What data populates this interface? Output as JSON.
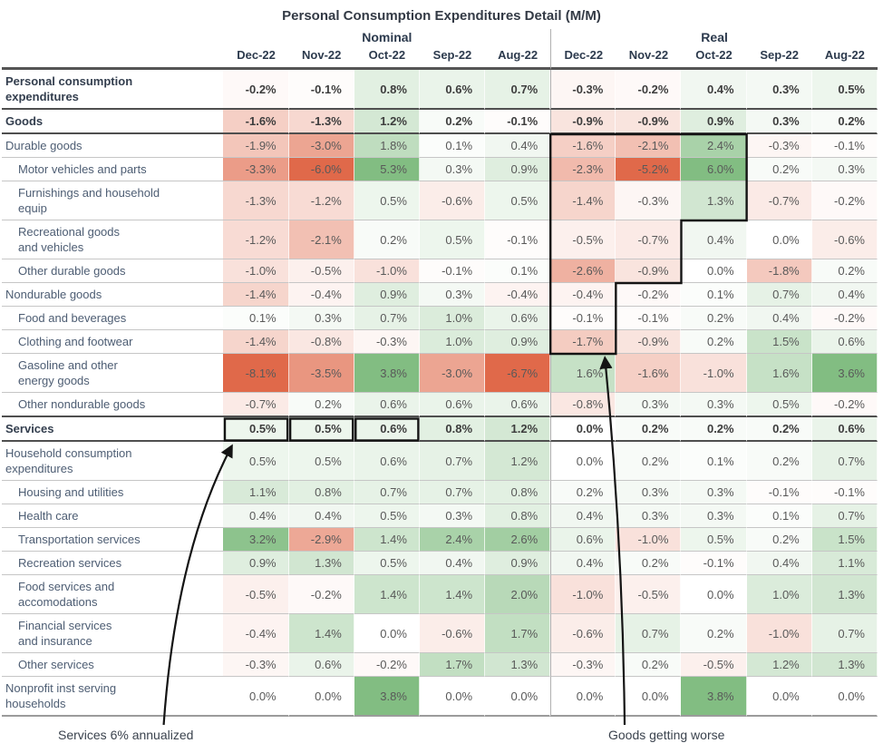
{
  "title": "Personal Consumption Expenditures Detail (M/M)",
  "chart_data": {
    "type": "heatmap",
    "title": "Personal Consumption Expenditures Detail (M/M)",
    "column_groups": [
      "Nominal",
      "Real"
    ],
    "columns": [
      "Dec-22",
      "Nov-22",
      "Oct-22",
      "Sep-22",
      "Aug-22"
    ],
    "value_unit": "%",
    "color_scale": {
      "negative_full": "#e0694a",
      "zero": "#ffffff",
      "positive_full": "#82bd82"
    },
    "rows": [
      {
        "lines": [
          "Personal consumption",
          "expenditures"
        ],
        "bold": true,
        "indent": 0,
        "nominal": [
          -0.2,
          -0.1,
          0.8,
          0.6,
          0.7
        ],
        "real": [
          -0.3,
          -0.2,
          0.4,
          0.3,
          0.5
        ]
      },
      {
        "lines": [
          "Goods"
        ],
        "bold": true,
        "indent": 0,
        "nominal": [
          -1.6,
          -1.3,
          1.2,
          0.2,
          -0.1
        ],
        "real": [
          -0.9,
          -0.9,
          0.9,
          0.3,
          0.2
        ]
      },
      {
        "lines": [
          "Durable goods"
        ],
        "bold": false,
        "indent": 0,
        "nominal": [
          -1.9,
          -3.0,
          1.8,
          0.1,
          0.4
        ],
        "real": [
          -1.6,
          -2.1,
          2.4,
          -0.3,
          -0.1
        ]
      },
      {
        "lines": [
          "Motor vehicles and parts"
        ],
        "bold": false,
        "indent": 1,
        "nominal": [
          -3.3,
          -6.0,
          5.3,
          0.3,
          0.9
        ],
        "real": [
          -2.3,
          -5.2,
          6.0,
          0.2,
          0.3
        ]
      },
      {
        "lines": [
          "Furnishings and household",
          "equip"
        ],
        "bold": false,
        "indent": 1,
        "nominal": [
          -1.3,
          -1.2,
          0.5,
          -0.6,
          0.5
        ],
        "real": [
          -1.4,
          -0.3,
          1.3,
          -0.7,
          -0.2
        ]
      },
      {
        "lines": [
          "Recreational goods",
          "and vehicles"
        ],
        "bold": false,
        "indent": 1,
        "nominal": [
          -1.2,
          -2.1,
          0.2,
          0.5,
          -0.1
        ],
        "real": [
          -0.5,
          -0.7,
          0.4,
          0.0,
          -0.6
        ]
      },
      {
        "lines": [
          "Other durable goods"
        ],
        "bold": false,
        "indent": 1,
        "nominal": [
          -1.0,
          -0.5,
          -1.0,
          -0.1,
          0.1
        ],
        "real": [
          -2.6,
          -0.9,
          0.0,
          -1.8,
          0.2
        ]
      },
      {
        "lines": [
          "Nondurable goods"
        ],
        "bold": false,
        "indent": 0,
        "nominal": [
          -1.4,
          -0.4,
          0.9,
          0.3,
          -0.4
        ],
        "real": [
          -0.4,
          -0.2,
          0.1,
          0.7,
          0.4
        ]
      },
      {
        "lines": [
          "Food and beverages"
        ],
        "bold": false,
        "indent": 1,
        "nominal": [
          0.1,
          0.3,
          0.7,
          1.0,
          0.6
        ],
        "real": [
          -0.1,
          -0.1,
          0.2,
          0.4,
          -0.2
        ]
      },
      {
        "lines": [
          "Clothing and footwear"
        ],
        "bold": false,
        "indent": 1,
        "nominal": [
          -1.4,
          -0.8,
          -0.3,
          1.0,
          0.9
        ],
        "real": [
          -1.7,
          -0.9,
          0.2,
          1.5,
          0.6
        ]
      },
      {
        "lines": [
          "Gasoline and other",
          "energy goods"
        ],
        "bold": false,
        "indent": 1,
        "nominal": [
          -8.1,
          -3.5,
          3.8,
          -3.0,
          -6.7
        ],
        "real": [
          1.6,
          -1.6,
          -1.0,
          1.6,
          3.6
        ]
      },
      {
        "lines": [
          "Other nondurable goods"
        ],
        "bold": false,
        "indent": 1,
        "nominal": [
          -0.7,
          0.2,
          0.6,
          0.6,
          0.6
        ],
        "real": [
          -0.8,
          0.3,
          0.3,
          0.5,
          -0.2
        ]
      },
      {
        "lines": [
          "Services"
        ],
        "bold": true,
        "indent": 0,
        "nominal": [
          0.5,
          0.5,
          0.6,
          0.8,
          1.2
        ],
        "real": [
          0.0,
          0.2,
          0.2,
          0.2,
          0.6
        ]
      },
      {
        "lines": [
          "Household consumption",
          "expenditures"
        ],
        "bold": false,
        "indent": 0,
        "nominal": [
          0.5,
          0.5,
          0.6,
          0.7,
          1.2
        ],
        "real": [
          0.0,
          0.2,
          0.1,
          0.2,
          0.7
        ]
      },
      {
        "lines": [
          "Housing and utilities"
        ],
        "bold": false,
        "indent": 1,
        "nominal": [
          1.1,
          0.8,
          0.7,
          0.7,
          0.8
        ],
        "real": [
          0.2,
          0.3,
          0.3,
          -0.1,
          -0.1
        ]
      },
      {
        "lines": [
          "Health care"
        ],
        "bold": false,
        "indent": 1,
        "nominal": [
          0.4,
          0.4,
          0.5,
          0.3,
          0.8
        ],
        "real": [
          0.4,
          0.3,
          0.3,
          0.1,
          0.7
        ]
      },
      {
        "lines": [
          "Transportation services"
        ],
        "bold": false,
        "indent": 1,
        "nominal": [
          3.2,
          -2.9,
          1.4,
          2.4,
          2.6
        ],
        "real": [
          0.6,
          -1.0,
          0.5,
          0.2,
          1.5
        ]
      },
      {
        "lines": [
          "Recreation services"
        ],
        "bold": false,
        "indent": 1,
        "nominal": [
          0.9,
          1.3,
          0.5,
          0.4,
          0.9
        ],
        "real": [
          0.4,
          0.2,
          -0.1,
          0.4,
          1.1
        ]
      },
      {
        "lines": [
          "Food services and",
          "accomodations"
        ],
        "bold": false,
        "indent": 1,
        "nominal": [
          -0.5,
          -0.2,
          1.4,
          1.4,
          2.0
        ],
        "real": [
          -1.0,
          -0.5,
          0.0,
          1.0,
          1.3
        ]
      },
      {
        "lines": [
          "Financial services",
          "and insurance"
        ],
        "bold": false,
        "indent": 1,
        "nominal": [
          -0.4,
          1.4,
          0.0,
          -0.6,
          1.7
        ],
        "real": [
          -0.6,
          0.7,
          0.2,
          -1.0,
          0.7
        ]
      },
      {
        "lines": [
          "Other services"
        ],
        "bold": false,
        "indent": 1,
        "nominal": [
          -0.3,
          0.6,
          -0.2,
          1.7,
          1.3
        ],
        "real": [
          -0.3,
          0.2,
          -0.5,
          1.2,
          1.3
        ]
      },
      {
        "lines": [
          "Nonprofit inst serving",
          "households"
        ],
        "bold": false,
        "indent": 0,
        "nominal": [
          0.0,
          0.0,
          3.8,
          0.0,
          0.0
        ],
        "real": [
          0.0,
          0.0,
          3.8,
          0.0,
          0.0
        ]
      }
    ]
  },
  "annotations": {
    "services_note": "Services 6% annualized",
    "goods_note": "Goods getting worse",
    "outline_color": "#141414",
    "outline_steps": [
      {
        "row_start": 2,
        "row_end": 4,
        "cols": 3
      },
      {
        "row_start": 5,
        "row_end": 6,
        "cols": 2
      },
      {
        "row_start": 7,
        "row_end": 9,
        "cols": 1
      }
    ],
    "services_boxes": {
      "row": 12,
      "group": "nominal",
      "cols": [
        0,
        1,
        2
      ]
    }
  }
}
